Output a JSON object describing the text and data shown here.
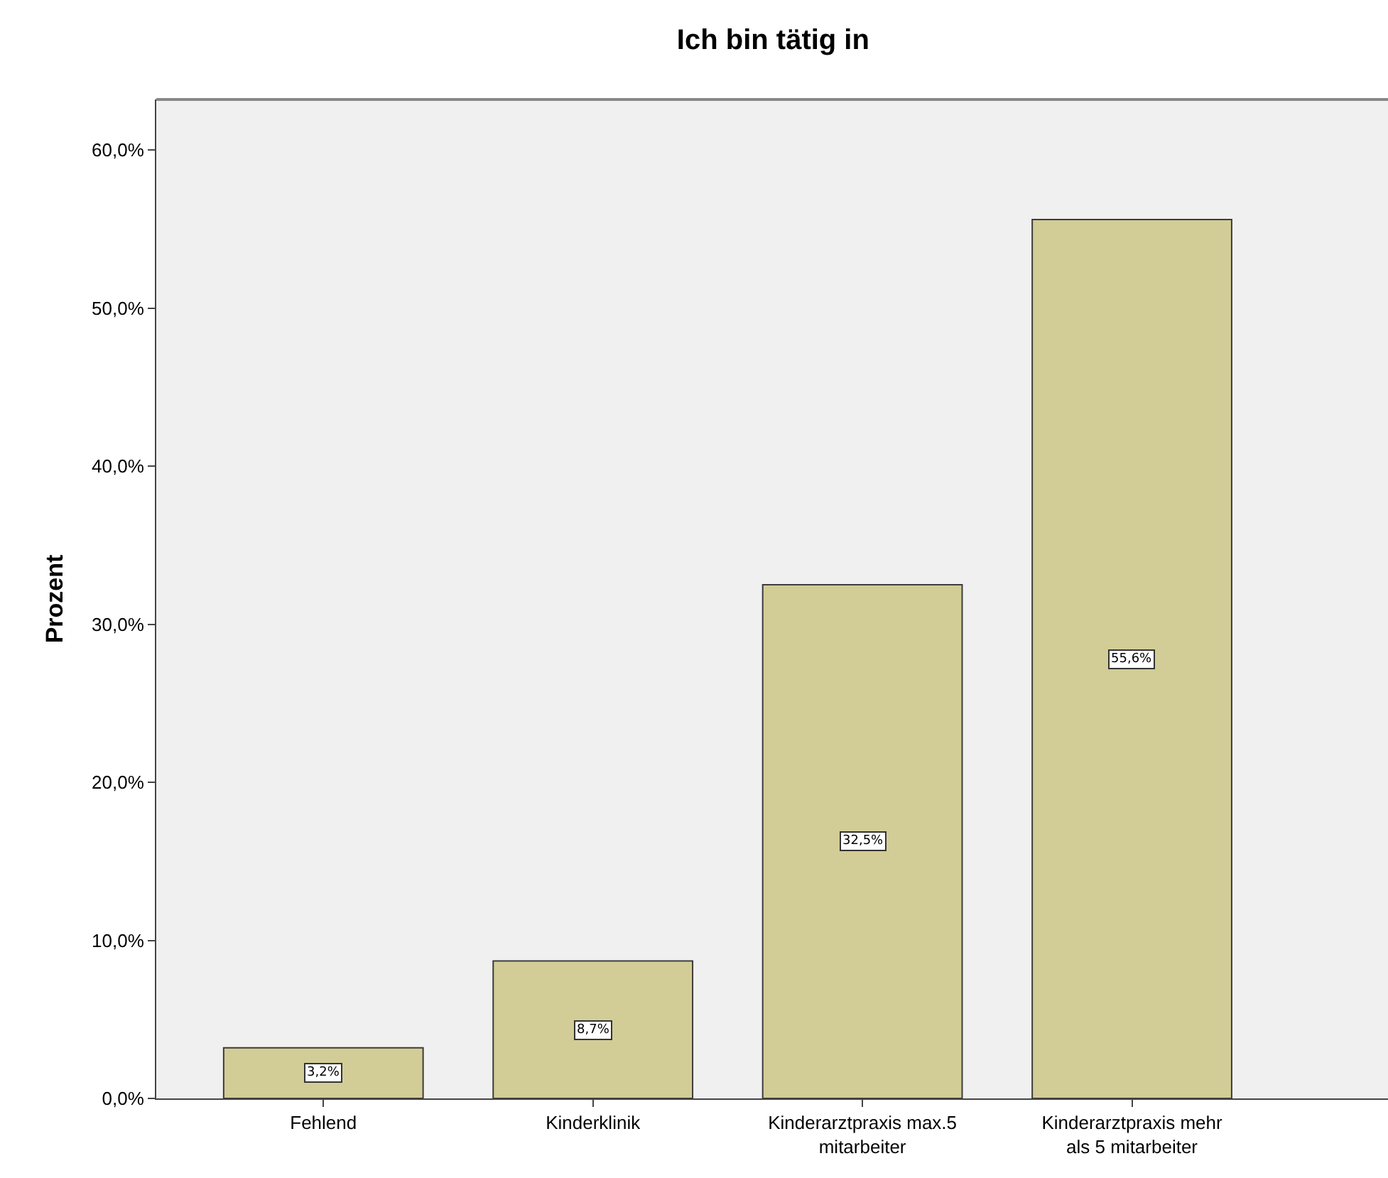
{
  "chart_data": {
    "type": "bar",
    "title": "Ich bin tätig in",
    "ylabel": "Prozent",
    "categories": [
      "Fehlend",
      "Kinderklinik",
      "Kinderarztpraxis max.5 mitarbeiter",
      "Kinderarztpraxis mehr als 5 mitarbeiter"
    ],
    "values": [
      3.2,
      8.7,
      32.5,
      55.6
    ],
    "value_labels": [
      "3,2%",
      "8,7%",
      "32,5%",
      "55,6%"
    ],
    "color": "#d2cd96",
    "ylim": [
      0,
      63.2
    ],
    "yticks": [
      {
        "value": 0,
        "label": "0,0%"
      },
      {
        "value": 10,
        "label": "10,0%"
      },
      {
        "value": 20,
        "label": "20,0%"
      },
      {
        "value": 30,
        "label": "30,0%"
      },
      {
        "value": 40,
        "label": "40,0%"
      },
      {
        "value": 50,
        "label": "50,0%"
      },
      {
        "value": 60,
        "label": "60,0%"
      }
    ],
    "grid": false
  }
}
